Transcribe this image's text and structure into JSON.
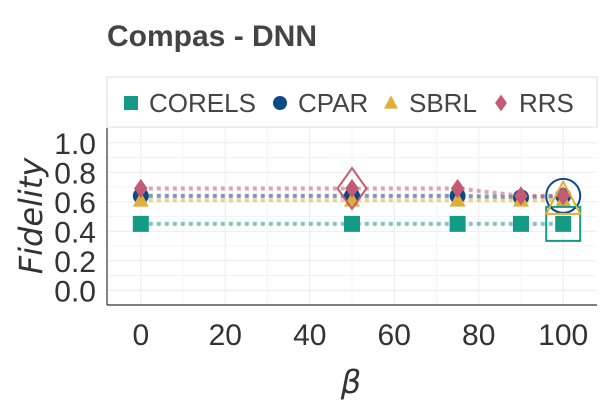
{
  "chart_data": {
    "type": "scatter",
    "title": "Compas - DNN",
    "xlabel": "β",
    "ylabel": "Fidelity",
    "xlim": [
      -8,
      108
    ],
    "ylim": [
      -0.1,
      1.1
    ],
    "xticks": [
      0,
      20,
      40,
      60,
      80,
      100
    ],
    "yticks": [
      0.0,
      0.2,
      0.4,
      0.6,
      0.8,
      1.0
    ],
    "xtick_labels": [
      "0",
      "20",
      "40",
      "60",
      "80",
      "100"
    ],
    "ytick_labels": [
      "0.0",
      "0.2",
      "0.4",
      "0.6",
      "0.8",
      "1.0"
    ],
    "grid": true,
    "legend_position": "top",
    "x": [
      0,
      50,
      75,
      90,
      100
    ],
    "series": [
      {
        "name": "CORELS",
        "marker": "square",
        "color": "#159a87",
        "values": [
          0.45,
          0.45,
          0.45,
          0.45,
          0.45
        ],
        "highlight_x": 100
      },
      {
        "name": "CPAR",
        "marker": "circle",
        "color": "#0d4a85",
        "values": [
          0.64,
          0.64,
          0.64,
          0.63,
          0.64
        ],
        "highlight_x": 100
      },
      {
        "name": "SBRL",
        "marker": "triangle",
        "color": "#e0ae3a",
        "values": [
          0.61,
          0.61,
          0.61,
          0.61,
          0.61
        ],
        "highlight_x": 100
      },
      {
        "name": "RRS",
        "marker": "diamond",
        "color": "#c45b74",
        "values": [
          0.69,
          0.69,
          0.69,
          0.64,
          0.64
        ],
        "highlight_x": 50
      }
    ]
  }
}
